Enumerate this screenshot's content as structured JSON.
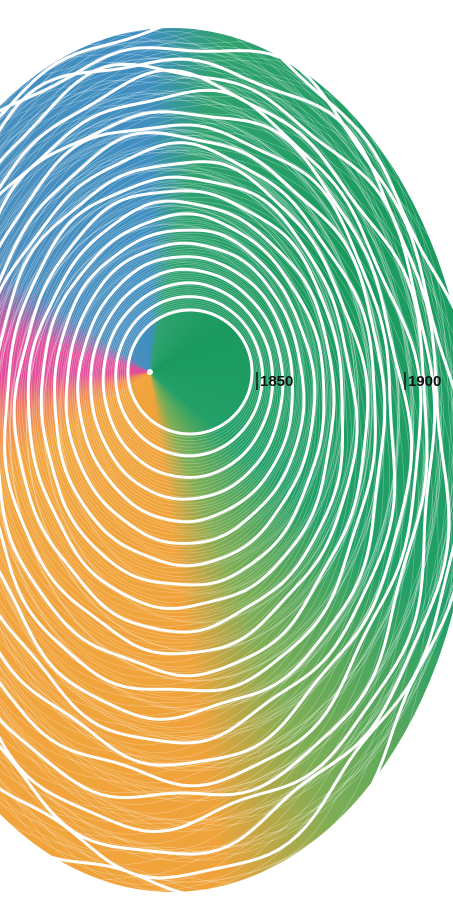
{
  "ring_labels": [
    "1850",
    "1900"
  ]
}
